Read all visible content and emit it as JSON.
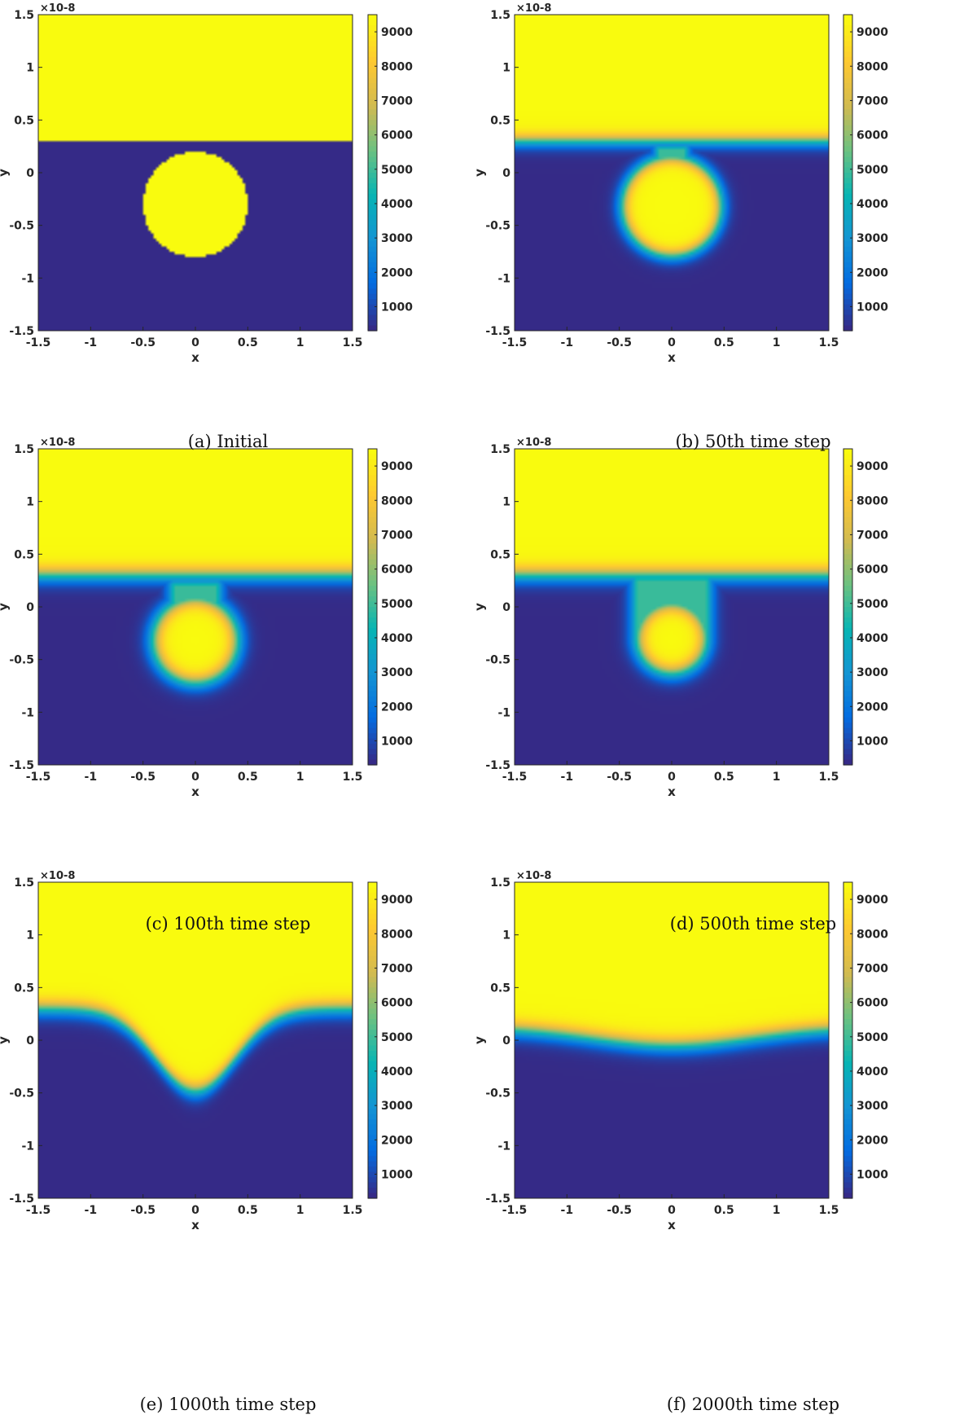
{
  "figure": {
    "colormap": "parula"
  },
  "chart_data": [
    {
      "type": "heatmap",
      "caption": "(a) Initial",
      "xlabel": "x",
      "ylabel": "y",
      "xlim": [
        -1.5,
        1.5
      ],
      "ylim": [
        -1.5,
        1.5
      ],
      "axis_exponent": "×10-8",
      "xticks": [
        "-1.5",
        "-1",
        "-0.5",
        "0",
        "0.5",
        "1",
        "1.5"
      ],
      "yticks": [
        "-1.5",
        "-1",
        "-0.5",
        "0",
        "0.5",
        "1",
        "1.5"
      ],
      "colorbar": {
        "min": 300,
        "max": 9500,
        "ticks": [
          "1000",
          "2000",
          "3000",
          "4000",
          "5000",
          "6000",
          "7000",
          "8000",
          "9000"
        ]
      },
      "field": {
        "interface_y": 0.3,
        "particle_center": [
          0,
          -0.3
        ],
        "particle_radius": 0.5,
        "neck_y": 0.2,
        "neck_half_width": 0.0,
        "smoothing": 0.0
      }
    },
    {
      "type": "heatmap",
      "caption": "(b) 50th time step",
      "xlabel": "x",
      "ylabel": "y",
      "xlim": [
        -1.5,
        1.5
      ],
      "ylim": [
        -1.5,
        1.5
      ],
      "axis_exponent": "×10-8",
      "xticks": [
        "-1.5",
        "-1",
        "-0.5",
        "0",
        "0.5",
        "1",
        "1.5"
      ],
      "yticks": [
        "-1.5",
        "-1",
        "-0.5",
        "0",
        "0.5",
        "1",
        "1.5"
      ],
      "colorbar": {
        "min": 300,
        "max": 9500,
        "ticks": [
          "1000",
          "2000",
          "3000",
          "4000",
          "5000",
          "6000",
          "7000",
          "8000",
          "9000"
        ]
      },
      "field": {
        "interface_y": 0.3,
        "particle_center": [
          0,
          -0.32
        ],
        "particle_radius": 0.47,
        "neck_y": 0.22,
        "neck_half_width": 0.12,
        "smoothing": 0.09
      }
    },
    {
      "type": "heatmap",
      "caption": "(c) 100th time step",
      "xlabel": "x",
      "ylabel": "y",
      "xlim": [
        -1.5,
        1.5
      ],
      "ylim": [
        -1.5,
        1.5
      ],
      "axis_exponent": "×10-8",
      "xticks": [
        "-1.5",
        "-1",
        "-0.5",
        "0",
        "0.5",
        "1",
        "1.5"
      ],
      "yticks": [
        "-1.5",
        "-1",
        "-0.5",
        "0",
        "0.5",
        "1",
        "1.5"
      ],
      "colorbar": {
        "min": 300,
        "max": 9500,
        "ticks": [
          "1000",
          "2000",
          "3000",
          "4000",
          "5000",
          "6000",
          "7000",
          "8000",
          "9000"
        ]
      },
      "field": {
        "interface_y": 0.3,
        "particle_center": [
          0,
          -0.32
        ],
        "particle_radius": 0.4,
        "neck_y": 0.2,
        "neck_half_width": 0.2,
        "smoothing": 0.11
      }
    },
    {
      "type": "heatmap",
      "caption": "(d) 500th time step",
      "xlabel": "x",
      "ylabel": "y",
      "xlim": [
        -1.5,
        1.5
      ],
      "ylim": [
        -1.5,
        1.5
      ],
      "axis_exponent": "×10-8",
      "xticks": [
        "-1.5",
        "-1",
        "-0.5",
        "0",
        "0.5",
        "1",
        "1.5"
      ],
      "yticks": [
        "-1.5",
        "-1",
        "-0.5",
        "0",
        "0.5",
        "1",
        "1.5"
      ],
      "colorbar": {
        "min": 300,
        "max": 9500,
        "ticks": [
          "1000",
          "2000",
          "3000",
          "4000",
          "5000",
          "6000",
          "7000",
          "8000",
          "9000"
        ]
      },
      "field": {
        "interface_y": 0.3,
        "particle_center": [
          0,
          -0.3
        ],
        "particle_radius": 0.33,
        "neck_y": 0.25,
        "neck_half_width": 0.33,
        "smoothing": 0.11
      }
    },
    {
      "type": "heatmap",
      "caption": "(e) 1000th time step",
      "xlabel": "x",
      "ylabel": "y",
      "xlim": [
        -1.5,
        1.5
      ],
      "ylim": [
        -1.5,
        1.5
      ],
      "axis_exponent": "×10-8",
      "xticks": [
        "-1.5",
        "-1",
        "-0.5",
        "0",
        "0.5",
        "1",
        "1.5"
      ],
      "yticks": [
        "-1.5",
        "-1",
        "-0.5",
        "0",
        "0.5",
        "1",
        "1.5"
      ],
      "colorbar": {
        "min": 300,
        "max": 9500,
        "ticks": [
          "1000",
          "2000",
          "3000",
          "4000",
          "5000",
          "6000",
          "7000",
          "8000",
          "9000"
        ]
      },
      "field": {
        "interface_y": 0.3,
        "groove_depth": 0.78,
        "groove_width": 0.38,
        "smoothing": 0.11
      }
    },
    {
      "type": "heatmap",
      "caption": "(f) 2000th time step",
      "xlabel": "x",
      "ylabel": "y",
      "xlim": [
        -1.5,
        1.5
      ],
      "ylim": [
        -1.5,
        1.5
      ],
      "axis_exponent": "×10-8",
      "xticks": [
        "-1.5",
        "-1",
        "-0.5",
        "0",
        "0.5",
        "1",
        "1.5"
      ],
      "yticks": [
        "-1.5",
        "-1",
        "-0.5",
        "0",
        "0.5",
        "1",
        "1.5"
      ],
      "colorbar": {
        "min": 300,
        "max": 9500,
        "ticks": [
          "1000",
          "2000",
          "3000",
          "4000",
          "5000",
          "6000",
          "7000",
          "8000",
          "9000"
        ]
      },
      "field": {
        "interface_y": 0.12,
        "groove_depth": 0.17,
        "groove_width": 0.75,
        "smoothing": 0.11
      }
    }
  ]
}
